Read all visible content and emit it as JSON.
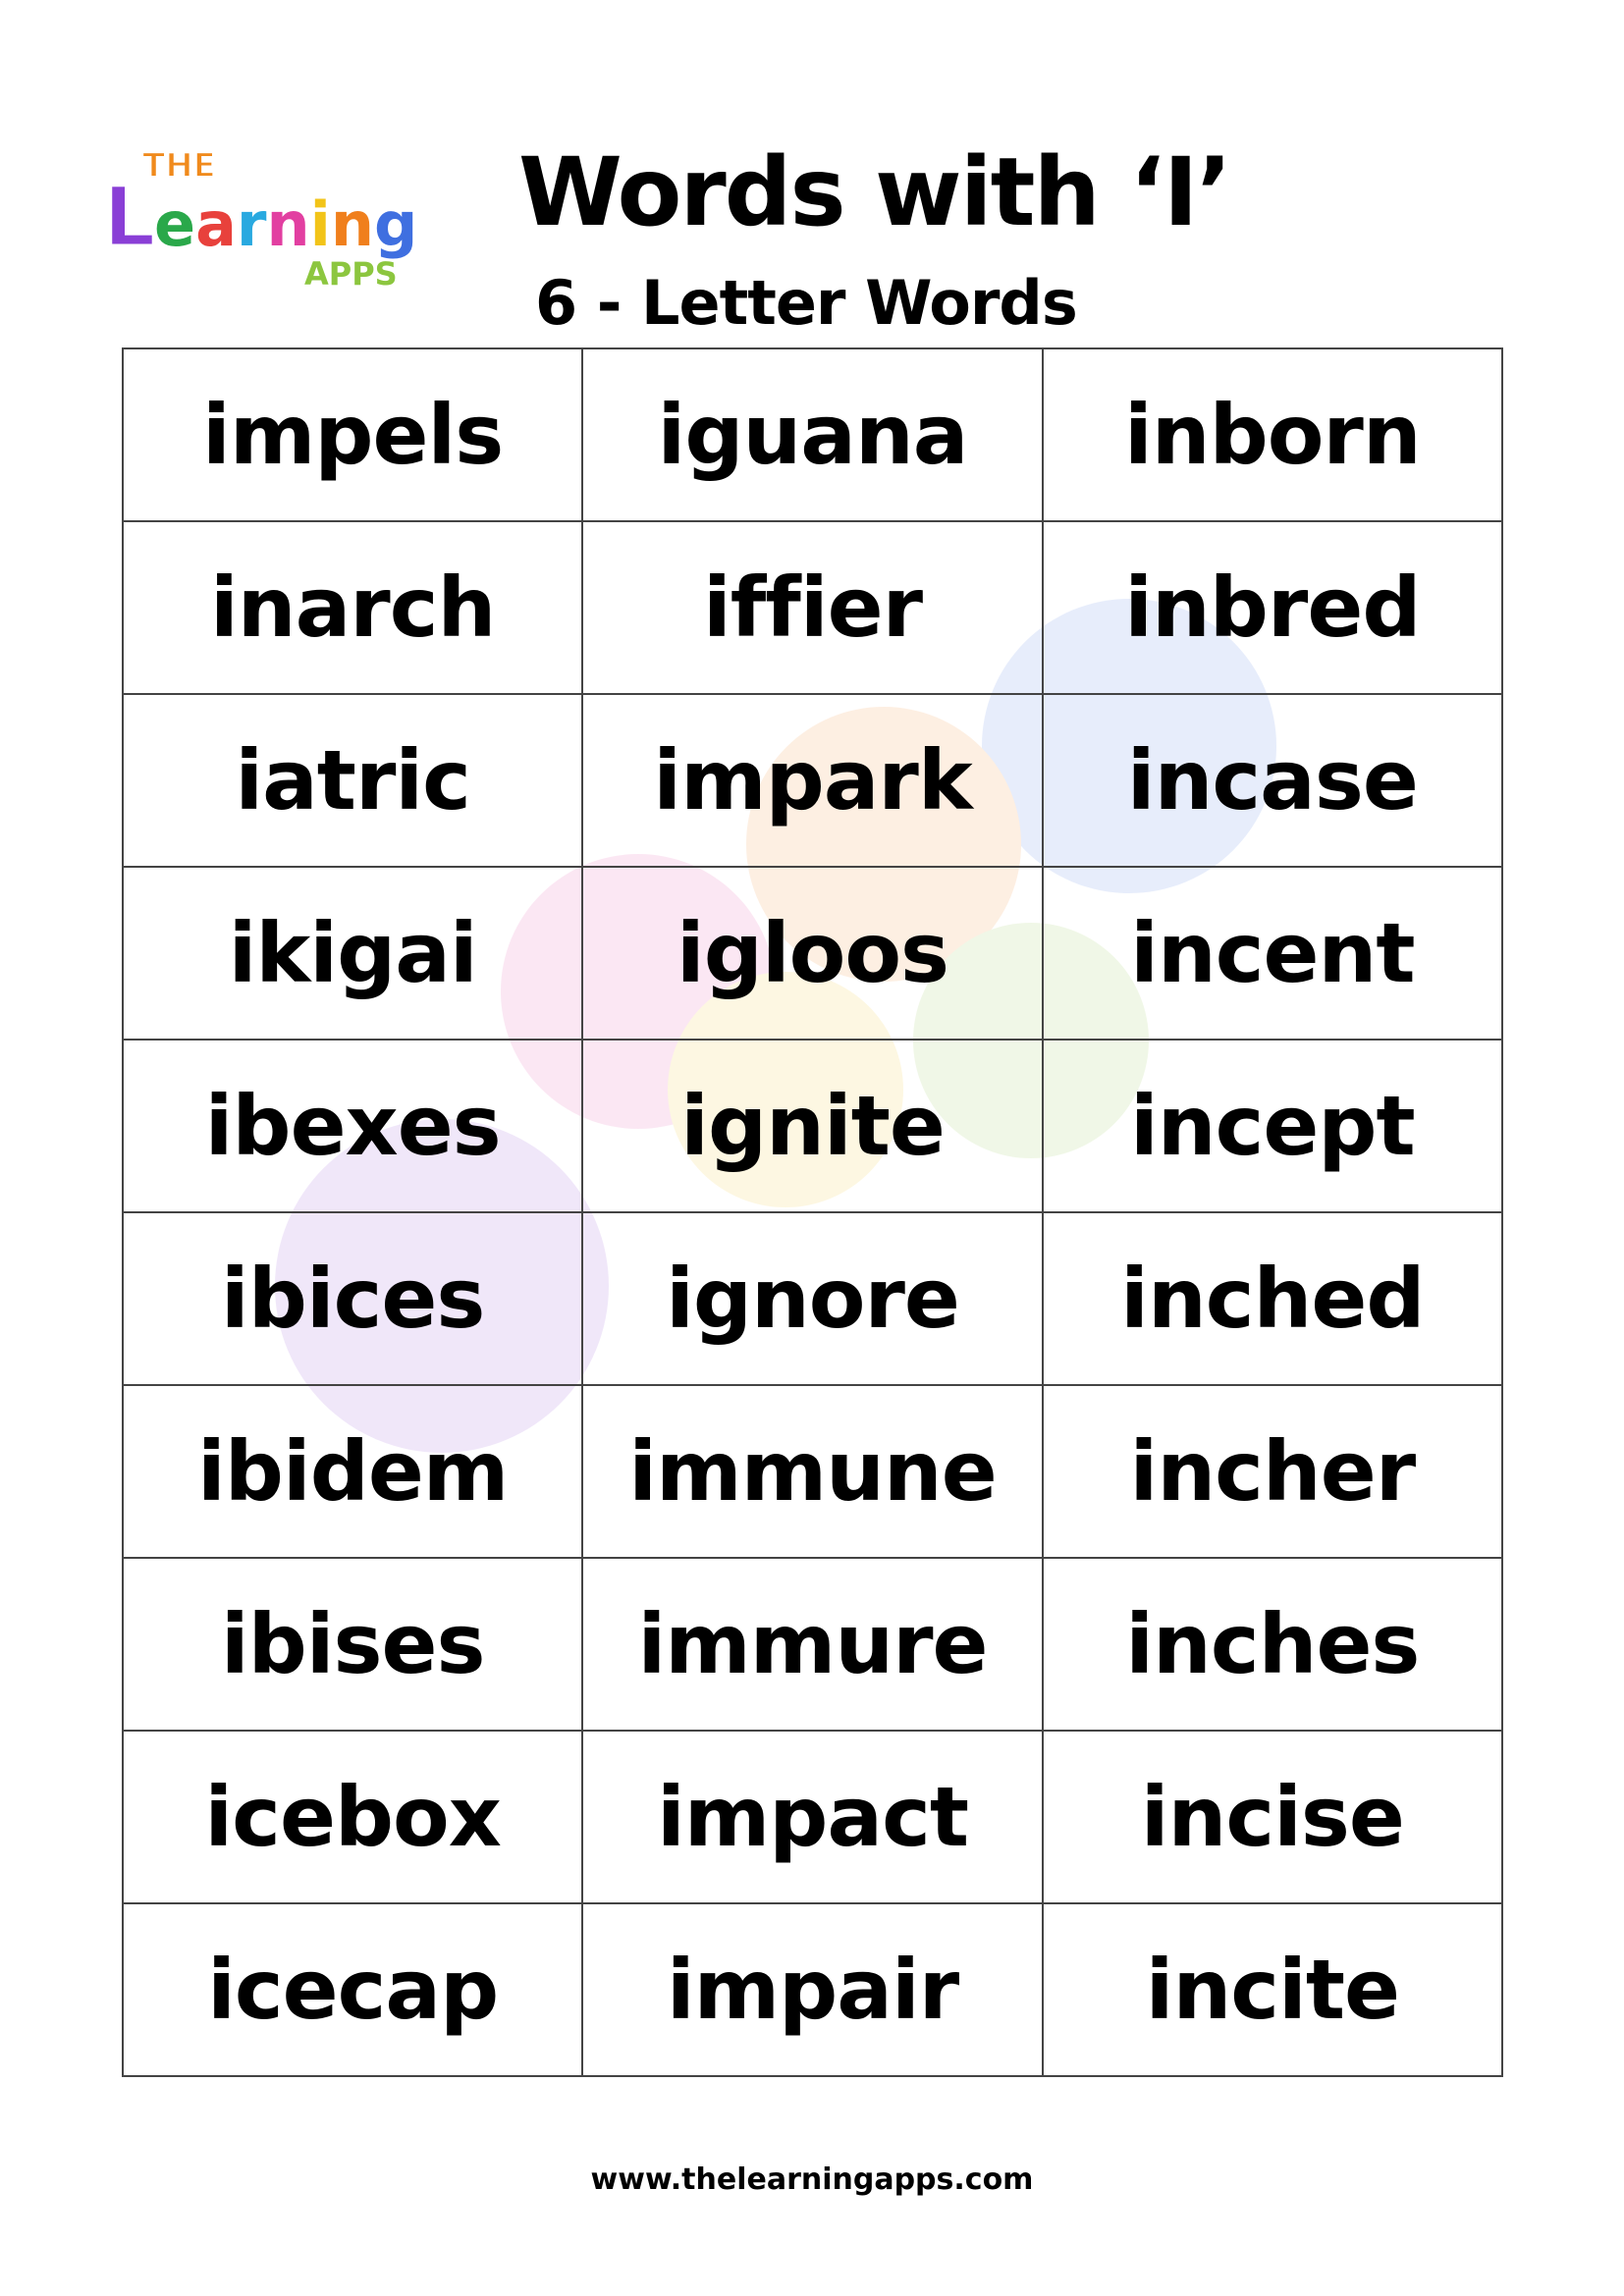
{
  "header": {
    "logo_text": "THE Learning APPS",
    "title": "Words with ‘I’",
    "subtitle": "6 - Letter Words"
  },
  "words": [
    [
      "impels",
      "iguana",
      "inborn"
    ],
    [
      "inarch",
      "iffier",
      "inbred"
    ],
    [
      "iatric",
      "impark",
      "incase"
    ],
    [
      "ikigai",
      "igloos",
      "incent"
    ],
    [
      "ibexes",
      "ignite",
      "incept"
    ],
    [
      "ibices",
      "ignore",
      "inched"
    ],
    [
      "ibidem",
      "immune",
      "incher"
    ],
    [
      "ibises",
      "immure",
      "inches"
    ],
    [
      "icebox",
      "impact",
      "incise"
    ],
    [
      "icecap",
      "impair",
      "incite"
    ]
  ],
  "footer": {
    "url": "www.thelearningapps.com"
  }
}
